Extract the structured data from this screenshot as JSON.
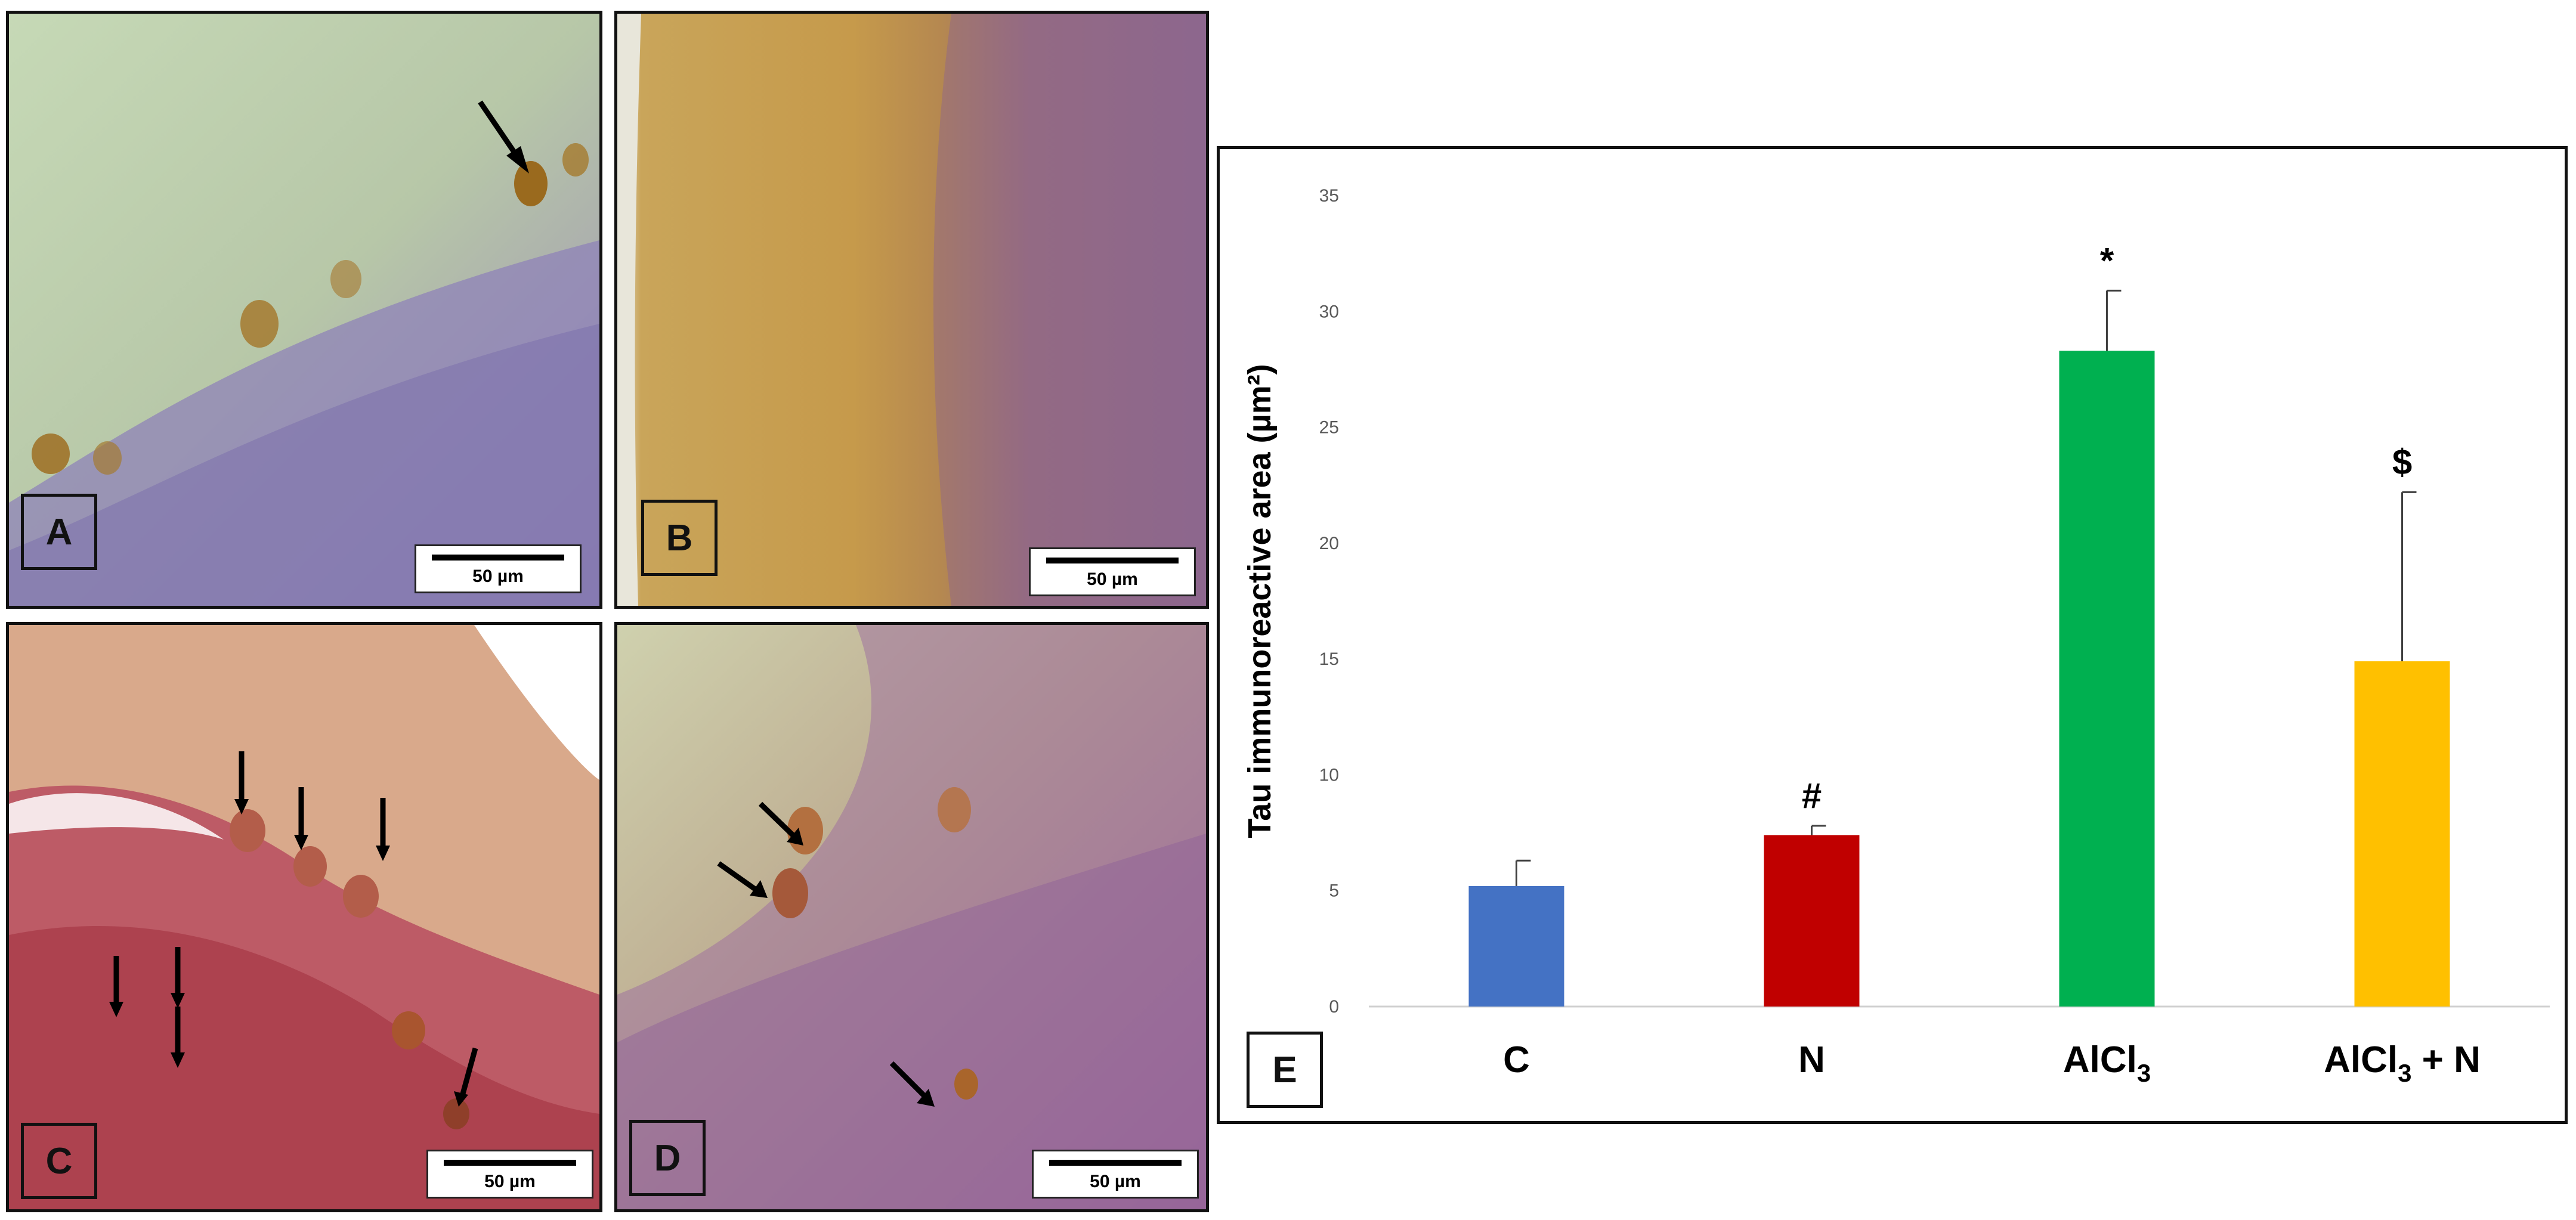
{
  "panels": [
    {
      "label": "A",
      "scale": "50 µm"
    },
    {
      "label": "B",
      "scale": "50 µm"
    },
    {
      "label": "C",
      "scale": "50 µm"
    },
    {
      "label": "D",
      "scale": "50 µm"
    }
  ],
  "chart_label": "E",
  "chart_data": {
    "type": "bar",
    "categories": [
      "C",
      "N",
      "AlCl3",
      "AlCl3 + N"
    ],
    "values": [
      5.2,
      7.4,
      28.3,
      14.9
    ],
    "errors": [
      1.1,
      0.4,
      2.6,
      7.3
    ],
    "annotations": [
      "",
      "#",
      "*",
      "$"
    ],
    "colors": [
      "#4472c4",
      "#c00000",
      "#00b050",
      "#ffc000"
    ],
    "ylabel": "Tau immunoreactive area (µm²)",
    "ylim": [
      0,
      35
    ],
    "yticks": [
      0,
      5,
      10,
      15,
      20,
      25,
      30,
      35
    ],
    "grid": false
  }
}
